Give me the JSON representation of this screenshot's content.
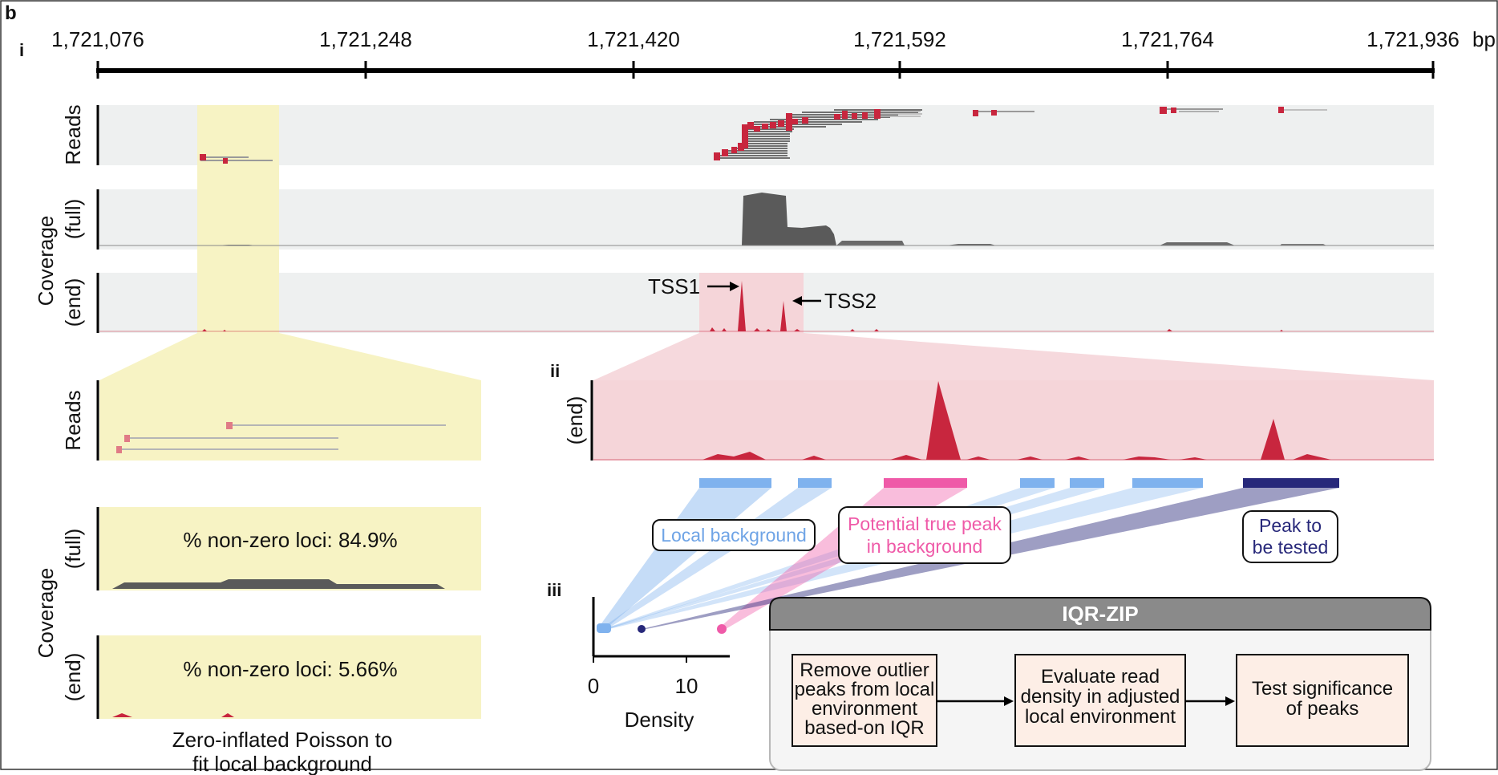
{
  "panel": {
    "letter": "b",
    "sub_i": "i",
    "sub_ii": "ii",
    "sub_iii": "iii"
  },
  "genome_axis": {
    "ticks": [
      {
        "label": "1,721,076"
      },
      {
        "label": "1,721,248"
      },
      {
        "label": "1,721,420"
      },
      {
        "label": "1,721,592"
      },
      {
        "label": "1,721,764"
      },
      {
        "label": "1,721,936"
      }
    ],
    "unit": "bp"
  },
  "tracks": {
    "reads_label": "Reads",
    "coverage_label": "Coverage",
    "full_label": "(full)",
    "end_label": "(end)"
  },
  "annotations": {
    "tss1": "TSS1",
    "tss2": "TSS2"
  },
  "zoom_left": {
    "reads_label": "Reads",
    "coverage_label": "Coverage",
    "full_label": "(full)",
    "end_label": "(end)",
    "nonzero_full": "% non-zero loci: 84.9%",
    "nonzero_end": "% non-zero loci: 5.66%",
    "caption_line1": "Zero-inflated Poisson to",
    "caption_line2": "fit local background"
  },
  "zoom_right": {
    "end_label": "(end)",
    "callouts": {
      "local_background": "Local background",
      "potential_peak_line1": "Potential true peak",
      "potential_peak_line2": "in background",
      "peak_tested_line1": "Peak to",
      "peak_tested_line2": "be tested"
    }
  },
  "density_plot": {
    "xlabel": "Density",
    "xticks": [
      "0",
      "10"
    ]
  },
  "iqr_zip": {
    "title": "IQR-ZIP",
    "step1_lines": [
      "Remove outlier",
      "peaks from local",
      "environment",
      "based-on IQR"
    ],
    "step2_lines": [
      "Evaluate read",
      "density in adjusted",
      "local environment"
    ],
    "step3_lines": [
      "Test significance",
      "of peaks"
    ]
  },
  "colors": {
    "highlight_yellow": "#f7f3c4",
    "highlight_pink": "#f5d5d9",
    "track_bg": "#eef0f0",
    "read_red": "#c8263e",
    "coverage_gray": "#5a5a5a",
    "local_bg_blue": "#7fb2ee",
    "potential_pink": "#ef5aa8",
    "tested_navy": "#27287a",
    "step_fill": "#fdeee6"
  }
}
